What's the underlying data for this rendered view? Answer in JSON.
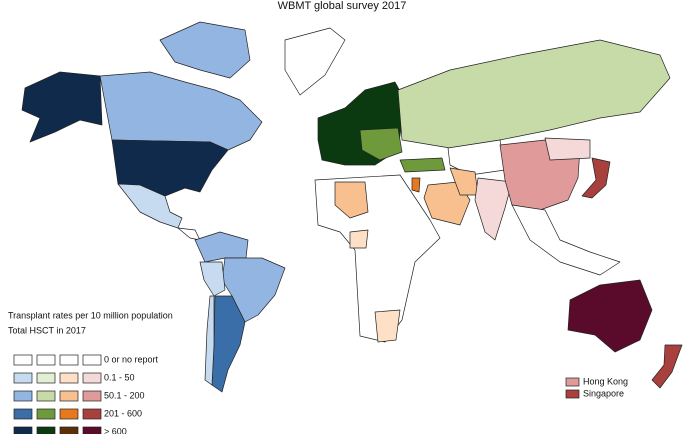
{
  "header": {
    "title": "WBMT global survey 2017"
  },
  "legend": {
    "title_lines": [
      "Transplant rates per 10 million population",
      "Total HSCT in 2017"
    ],
    "rows": [
      {
        "label": "0 or no report",
        "colors": [
          "#ffffff",
          "#ffffff",
          "#ffffff",
          "#ffffff"
        ]
      },
      {
        "label": "0.1 - 50",
        "colors": [
          "#c6dbef",
          "#e3efd3",
          "#fde0c5",
          "#f5d8d8"
        ]
      },
      {
        "label": "50.1 - 200",
        "colors": [
          "#93b5e1",
          "#c7dba8",
          "#f8c08f",
          "#e09a9a"
        ]
      },
      {
        "label": "201 - 600",
        "colors": [
          "#3a6ea8",
          "#6f9a3c",
          "#e8781e",
          "#a8403e"
        ]
      },
      {
        "label": "> 600",
        "colors": [
          "#102a4c",
          "#0b3a10",
          "#5a2f0a",
          "#5a0a2a"
        ]
      }
    ]
  },
  "insets": [
    {
      "label": "Hong Kong",
      "color": "#e09a9a"
    },
    {
      "label": "Singapore",
      "color": "#a8403e"
    }
  ]
}
